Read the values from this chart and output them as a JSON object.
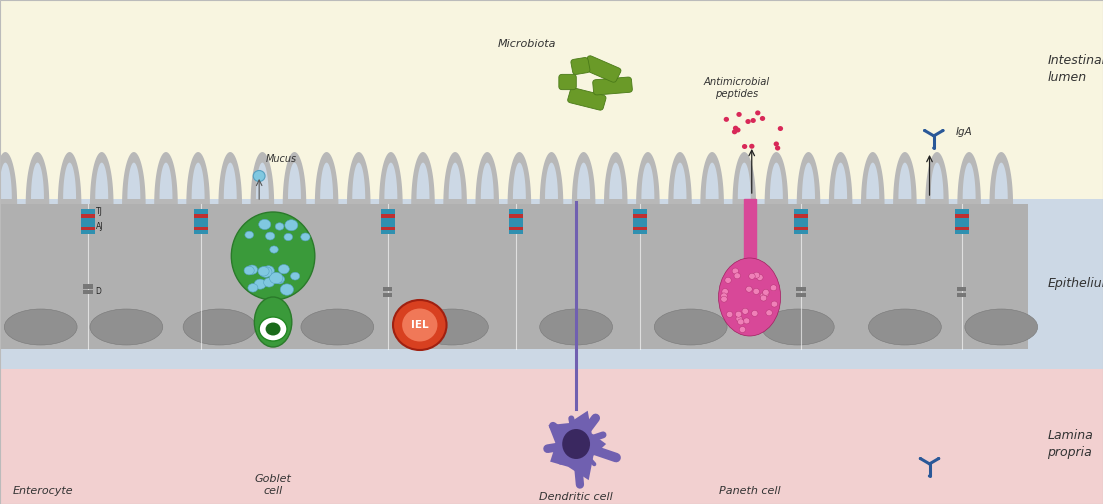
{
  "bg_lumen_color": "#f8f5e0",
  "bg_epithelium_color": "#ccd8e5",
  "bg_lamina_color": "#f2d0d0",
  "epithelium_body_color": "#b0b0b0",
  "villus_color": "#b8b8b8",
  "crypt_color": "#909090",
  "goblet_body_color": "#3a9a3a",
  "goblet_body_edge": "#2a7a2a",
  "goblet_mucus_ball_color": "#80c8e0",
  "goblet_mucus_ball_edge": "#55a0c0",
  "goblet_nucleus_color": "#1a6a1a",
  "goblet_nucleus_ring": "#228822",
  "iel_outer_color": "#d84020",
  "iel_inner_color": "#f07858",
  "paneth_body_color": "#d84898",
  "paneth_granule_color": "#f080b8",
  "dendritic_body_color": "#7060b0",
  "dendritic_nucleus_color": "#3a2860",
  "microbiota_color": "#6a9a28",
  "microbiota_edge": "#4a7a18",
  "antimicrobial_color": "#d82858",
  "iga_color": "#2a5898",
  "tj_teal": "#3090b0",
  "tj_red": "#c03030",
  "cell_border_color": "#ffffff",
  "desmosome_color": "#777777",
  "labels": {
    "intestinal_lumen": "Intestinal\nlumen",
    "epithelium": "Epithelium",
    "lamina_propria": "Lamina\npropria",
    "enterocyte": "Enterocyte",
    "goblet_cell": "Goblet\ncell",
    "dendritic_cell": "Dendritic cell",
    "paneth_cell": "Paneth cell",
    "microbiota": "Microbiota",
    "antimicrobial": "Antimicrobial\npeptides",
    "iga": "IgA",
    "mucus": "Mucus",
    "tj": "TJ",
    "aj": "AJ",
    "d": "D",
    "iel": "IEL"
  },
  "figsize": [
    11.03,
    5.04
  ],
  "dpi": 100
}
